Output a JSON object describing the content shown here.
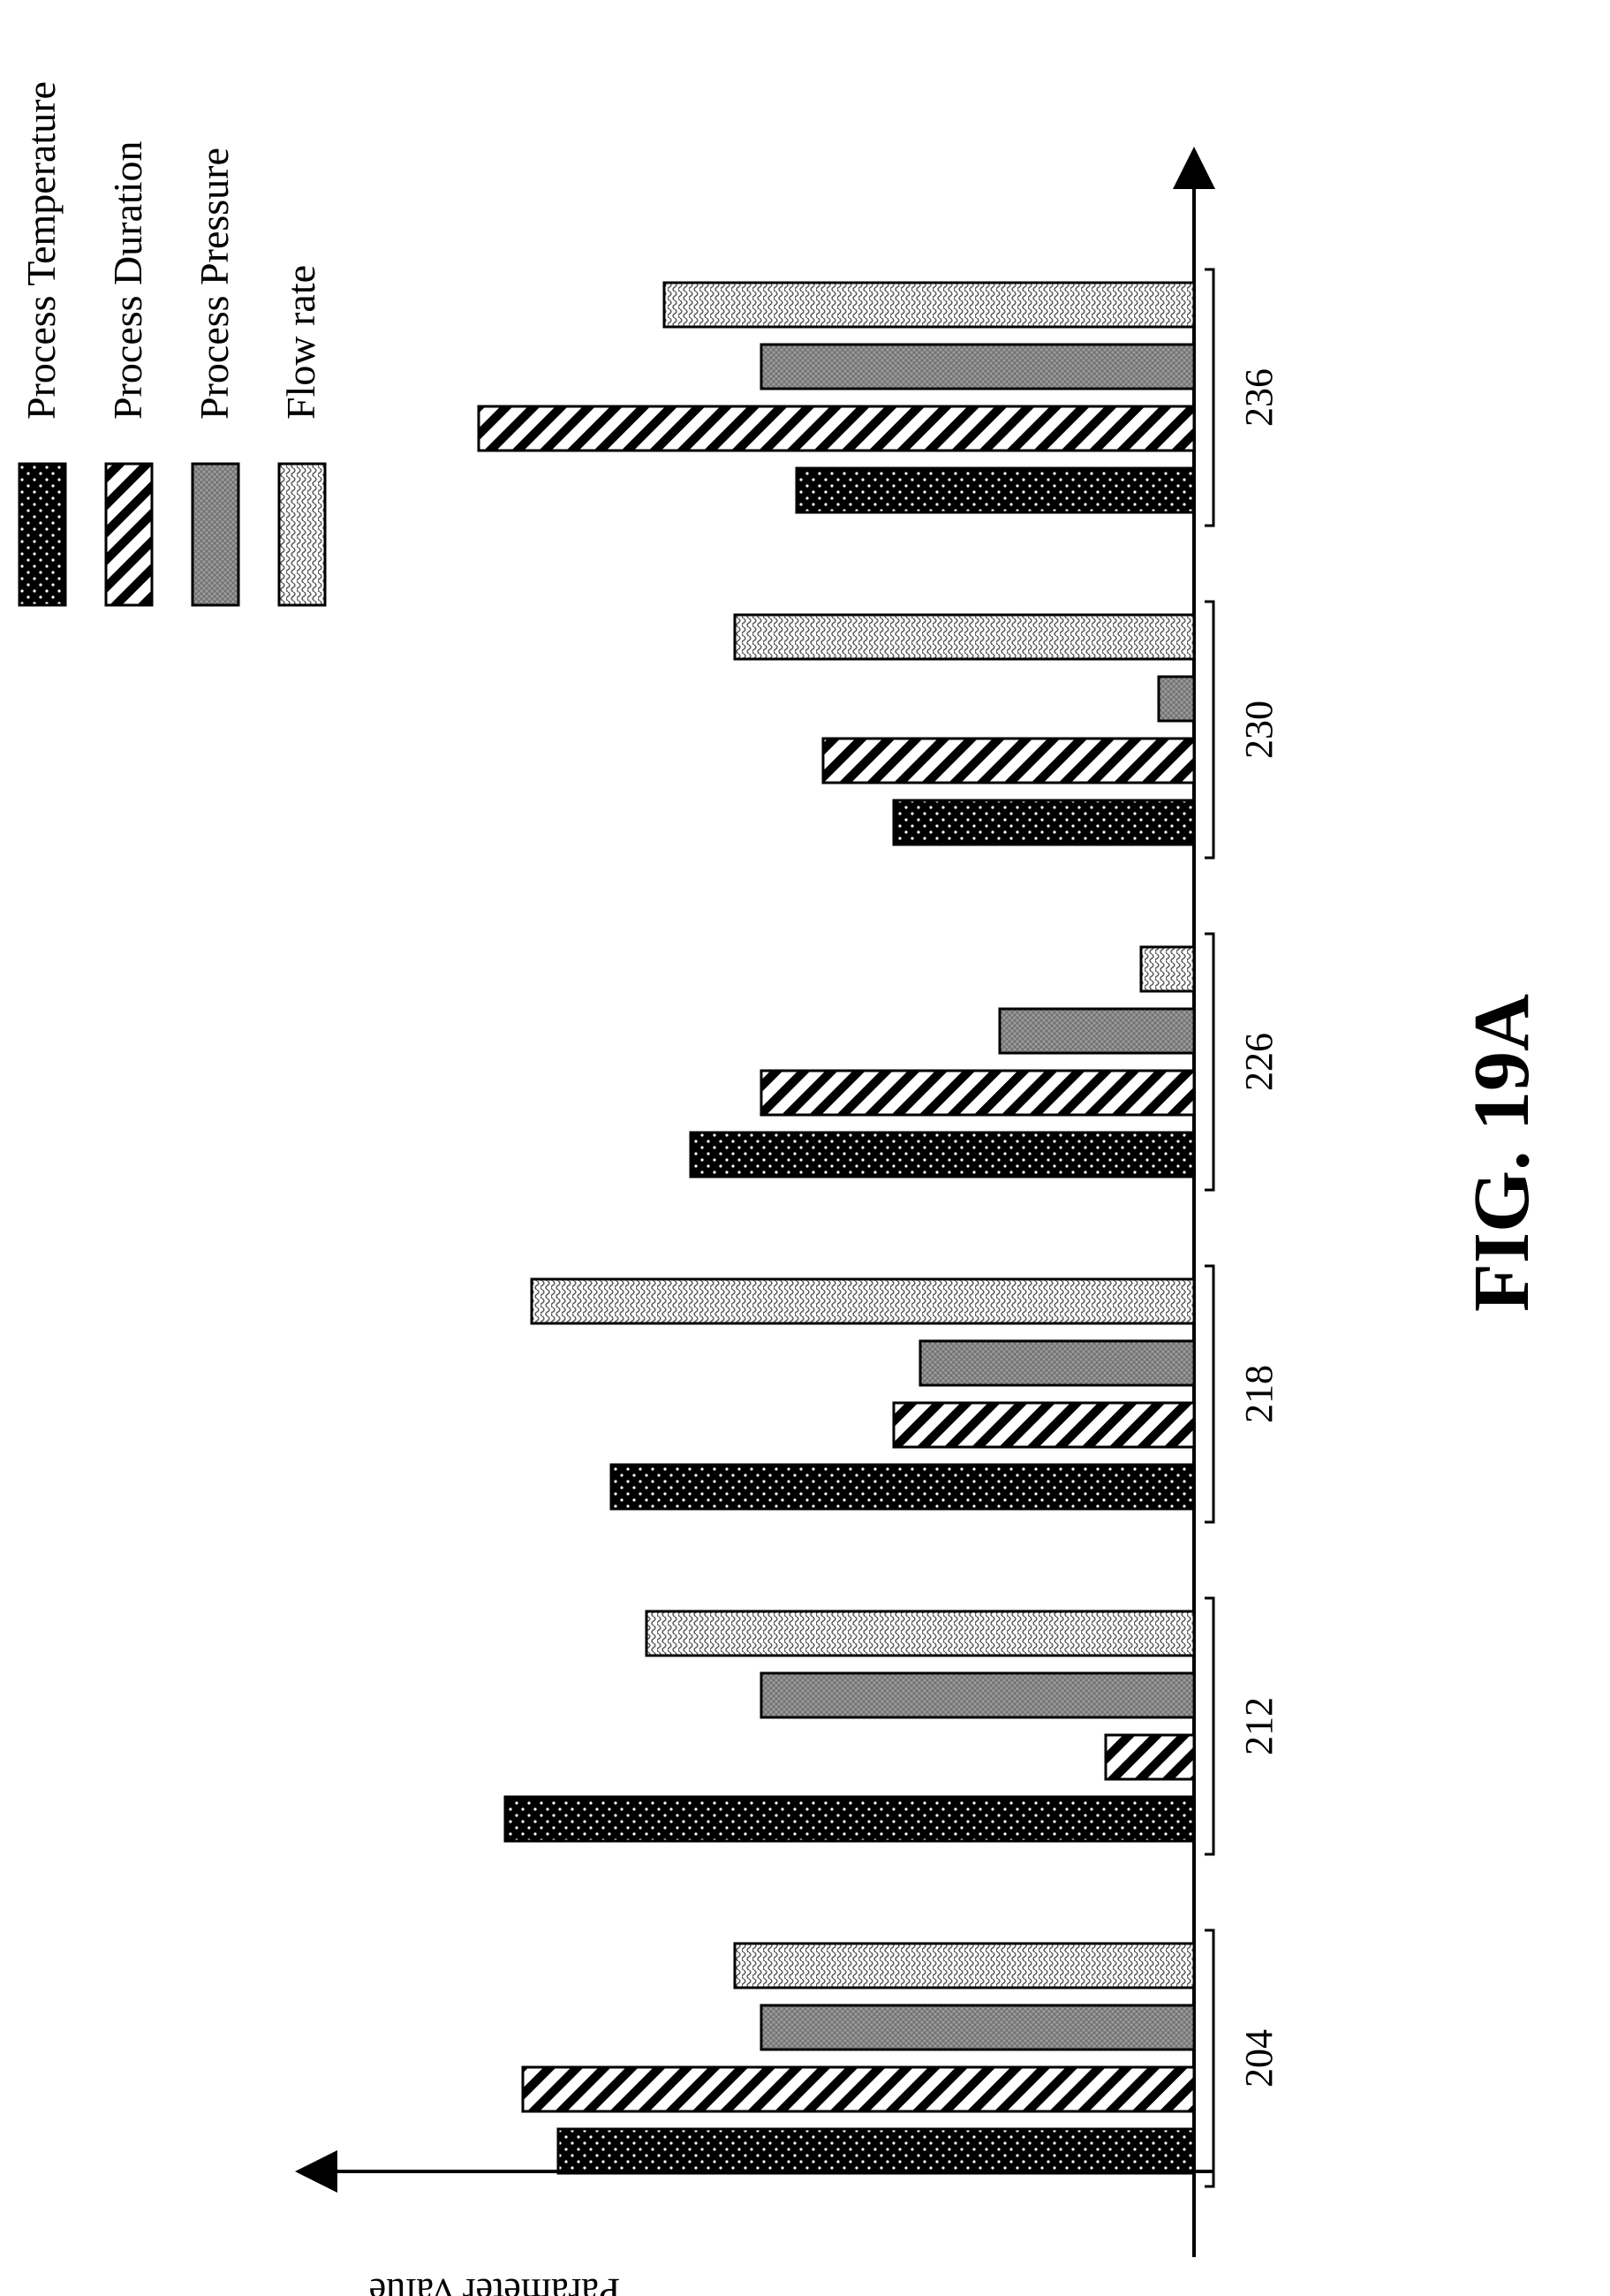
{
  "figure_label": "FIG. 19A",
  "chart_data": {
    "type": "bar",
    "orientation": "rotated",
    "title": "",
    "xlabel": "",
    "ylabel": "Parameter value",
    "categories": [
      "204",
      "212",
      "218",
      "226",
      "230",
      "236"
    ],
    "series": [
      {
        "name": "Process Temperature",
        "pattern": "dots-on-black",
        "values": [
          72,
          78,
          66,
          57,
          34,
          45
        ]
      },
      {
        "name": "Process Duration",
        "pattern": "diagonal-hatch",
        "values": [
          76,
          10,
          34,
          49,
          42,
          81
        ]
      },
      {
        "name": "Process Pressure",
        "pattern": "crosshatch-gray",
        "values": [
          49,
          49,
          31,
          22,
          4,
          49
        ]
      },
      {
        "name": "Flow rate",
        "pattern": "wavy-light",
        "values": [
          52,
          62,
          75,
          6,
          52,
          60
        ]
      }
    ],
    "ylim": [
      0,
      100
    ],
    "legend_position": "top",
    "axis_ticks_shown": false,
    "grid": false
  },
  "colors": {
    "ink": "#000000",
    "paper": "#ffffff",
    "pressure_fill": "#9a9a9a"
  }
}
